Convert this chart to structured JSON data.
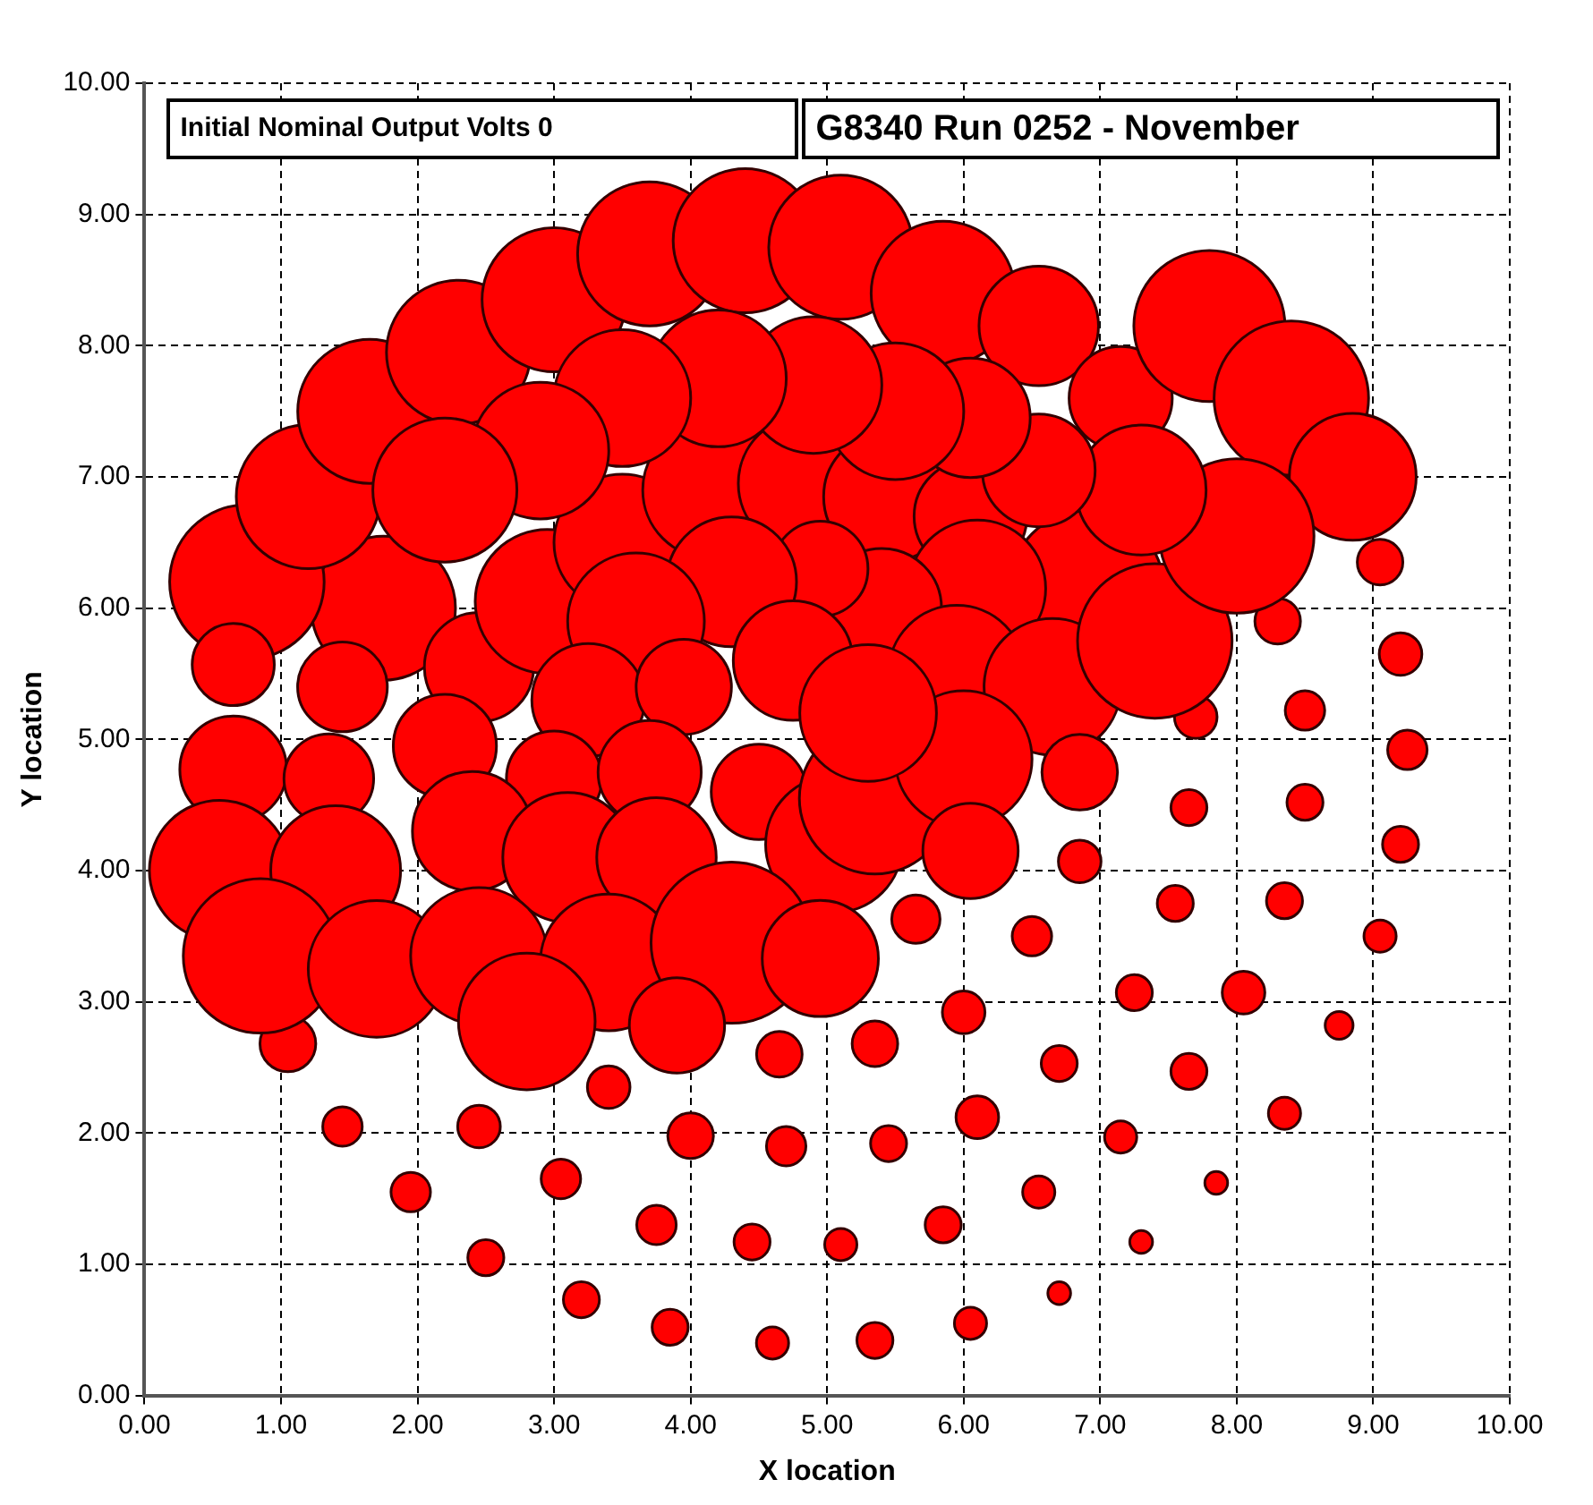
{
  "chart_data": {
    "type": "bubble",
    "title": "G8340 Run 0252 - November",
    "annotations": [
      "Initial Nominal Output Volts 0"
    ],
    "xlabel": "X location",
    "ylabel": "Y location",
    "xlim": [
      0,
      10
    ],
    "ylim": [
      0,
      10
    ],
    "xticks": [
      {
        "value": 0,
        "label": "0.00"
      },
      {
        "value": 1,
        "label": "1.00"
      },
      {
        "value": 2,
        "label": "2.00"
      },
      {
        "value": 3,
        "label": "3.00"
      },
      {
        "value": 4,
        "label": "4.00"
      },
      {
        "value": 5,
        "label": "5.00"
      },
      {
        "value": 6,
        "label": "6.00"
      },
      {
        "value": 7,
        "label": "7.00"
      },
      {
        "value": 8,
        "label": "8.00"
      },
      {
        "value": 9,
        "label": "9.00"
      },
      {
        "value": 10,
        "label": "10.00"
      }
    ],
    "yticks": [
      {
        "value": 0,
        "label": "0.00"
      },
      {
        "value": 1,
        "label": "1.00"
      },
      {
        "value": 2,
        "label": "2.00"
      },
      {
        "value": 3,
        "label": "3.00"
      },
      {
        "value": 4,
        "label": "4.00"
      },
      {
        "value": 5,
        "label": "5.00"
      },
      {
        "value": 6,
        "label": "6.00"
      },
      {
        "value": 7,
        "label": "7.00"
      },
      {
        "value": 8,
        "label": "8.00"
      },
      {
        "value": 9,
        "label": "9.00"
      },
      {
        "value": 10,
        "label": "10.00"
      }
    ],
    "grid": true,
    "line_style": "dashed",
    "series": [
      {
        "color": "#ff0000",
        "x": [
          1.05,
          1.45,
          1.95,
          2.5,
          2.45,
          3.05,
          3.2,
          3.4,
          3.75,
          3.85,
          4.0,
          4.45,
          4.6,
          4.65,
          4.7,
          5.1,
          5.35,
          5.35,
          5.45,
          5.65,
          5.85,
          6.05,
          6.0,
          6.1,
          6.5,
          6.55,
          6.7,
          6.7,
          6.85,
          7.15,
          7.25,
          7.3,
          7.55,
          7.65,
          7.65,
          7.7,
          7.85,
          8.05,
          8.35,
          8.35,
          8.3,
          8.5,
          8.5,
          8.75,
          9.05,
          9.05,
          9.2,
          9.25,
          9.2,
          1.75,
          2.45,
          2.95,
          3.5,
          4.15,
          4.85,
          5.45,
          6.05,
          6.9,
          6.1,
          5.4,
          4.95,
          4.3,
          3.6,
          3.25,
          3.95,
          4.75,
          5.95,
          6.65,
          7.4,
          0.75,
          1.2,
          1.65,
          2.3,
          3.0,
          3.7,
          4.4,
          5.1,
          5.85,
          6.55,
          7.15,
          7.8,
          8.4,
          8.85,
          8.0,
          7.3,
          6.55,
          6.05,
          5.5,
          4.9,
          4.2,
          3.5,
          2.9,
          2.2,
          0.65,
          1.45,
          0.65,
          1.35,
          2.2,
          3.0,
          3.7,
          0.55,
          1.4,
          2.4,
          3.1,
          3.75,
          4.5,
          5.05,
          5.35,
          6.0,
          6.05,
          6.85,
          5.3,
          0.85,
          1.7,
          2.45,
          3.4,
          4.3,
          2.8,
          3.9,
          4.95
        ],
        "values": [
          2.68,
          2.05,
          1.55,
          1.05,
          2.05,
          1.65,
          0.73,
          2.35,
          1.3,
          0.52,
          1.98,
          1.17,
          0.4,
          2.6,
          1.9,
          1.15,
          0.42,
          2.68,
          1.92,
          3.63,
          1.3,
          0.55,
          2.92,
          2.12,
          3.5,
          1.55,
          2.53,
          0.78,
          4.07,
          1.97,
          3.07,
          1.17,
          3.75,
          2.47,
          4.48,
          5.17,
          1.62,
          3.07,
          3.77,
          2.15,
          5.9,
          5.22,
          4.52,
          2.82,
          6.35,
          3.5,
          5.65,
          4.92,
          4.2,
          6.0,
          5.55,
          6.05,
          6.5,
          6.9,
          6.95,
          6.85,
          6.7,
          6.15,
          6.15,
          6.0,
          6.3,
          6.2,
          5.9,
          5.3,
          5.4,
          5.6,
          5.5,
          5.4,
          5.75,
          6.2,
          6.85,
          7.5,
          7.95,
          8.35,
          8.7,
          8.8,
          8.75,
          8.4,
          8.15,
          7.6,
          8.15,
          7.6,
          7.0,
          6.55,
          6.9,
          7.05,
          7.45,
          7.5,
          7.7,
          7.75,
          7.6,
          7.2,
          6.9,
          5.57,
          5.4,
          4.77,
          4.7,
          4.95,
          4.7,
          4.75,
          4.0,
          4.0,
          4.3,
          4.1,
          4.1,
          4.6,
          4.2,
          4.55,
          4.85,
          4.15,
          4.75,
          5.2,
          3.35,
          3.25,
          3.35,
          3.3,
          3.45,
          2.85,
          2.82,
          3.33
        ],
        "sizes": [
          0.12,
          0.06,
          0.06,
          0.05,
          0.07,
          0.06,
          0.05,
          0.07,
          0.06,
          0.05,
          0.08,
          0.05,
          0.04,
          0.08,
          0.06,
          0.04,
          0.05,
          0.08,
          0.05,
          0.09,
          0.05,
          0.04,
          0.07,
          0.07,
          0.06,
          0.04,
          0.05,
          0.02,
          0.07,
          0.04,
          0.05,
          0.02,
          0.05,
          0.05,
          0.05,
          0.07,
          0.02,
          0.07,
          0.05,
          0.04,
          0.08,
          0.06,
          0.05,
          0.03,
          0.08,
          0.04,
          0.07,
          0.06,
          0.05,
          0.8,
          0.46,
          0.8,
          0.72,
          0.72,
          0.72,
          0.65,
          0.49,
          0.92,
          0.72,
          0.55,
          0.35,
          0.65,
          0.72,
          0.49,
          0.35,
          0.55,
          0.72,
          0.72,
          0.92,
          0.92,
          0.8,
          0.8,
          0.8,
          0.8,
          0.8,
          0.8,
          0.8,
          0.8,
          0.55,
          0.41,
          0.88,
          0.92,
          0.62,
          0.92,
          0.65,
          0.49,
          0.55,
          0.72,
          0.72,
          0.72,
          0.72,
          0.72,
          0.8,
          0.26,
          0.31,
          0.44,
          0.31,
          0.41,
          0.35,
          0.41,
          0.76,
          0.65,
          0.55,
          0.65,
          0.55,
          0.35,
          0.72,
          0.88,
          0.72,
          0.35,
          0.22,
          0.72,
          0.92,
          0.72,
          0.72,
          0.72,
          1,
          0.72,
          0.35,
          0.52
        ]
      }
    ]
  }
}
